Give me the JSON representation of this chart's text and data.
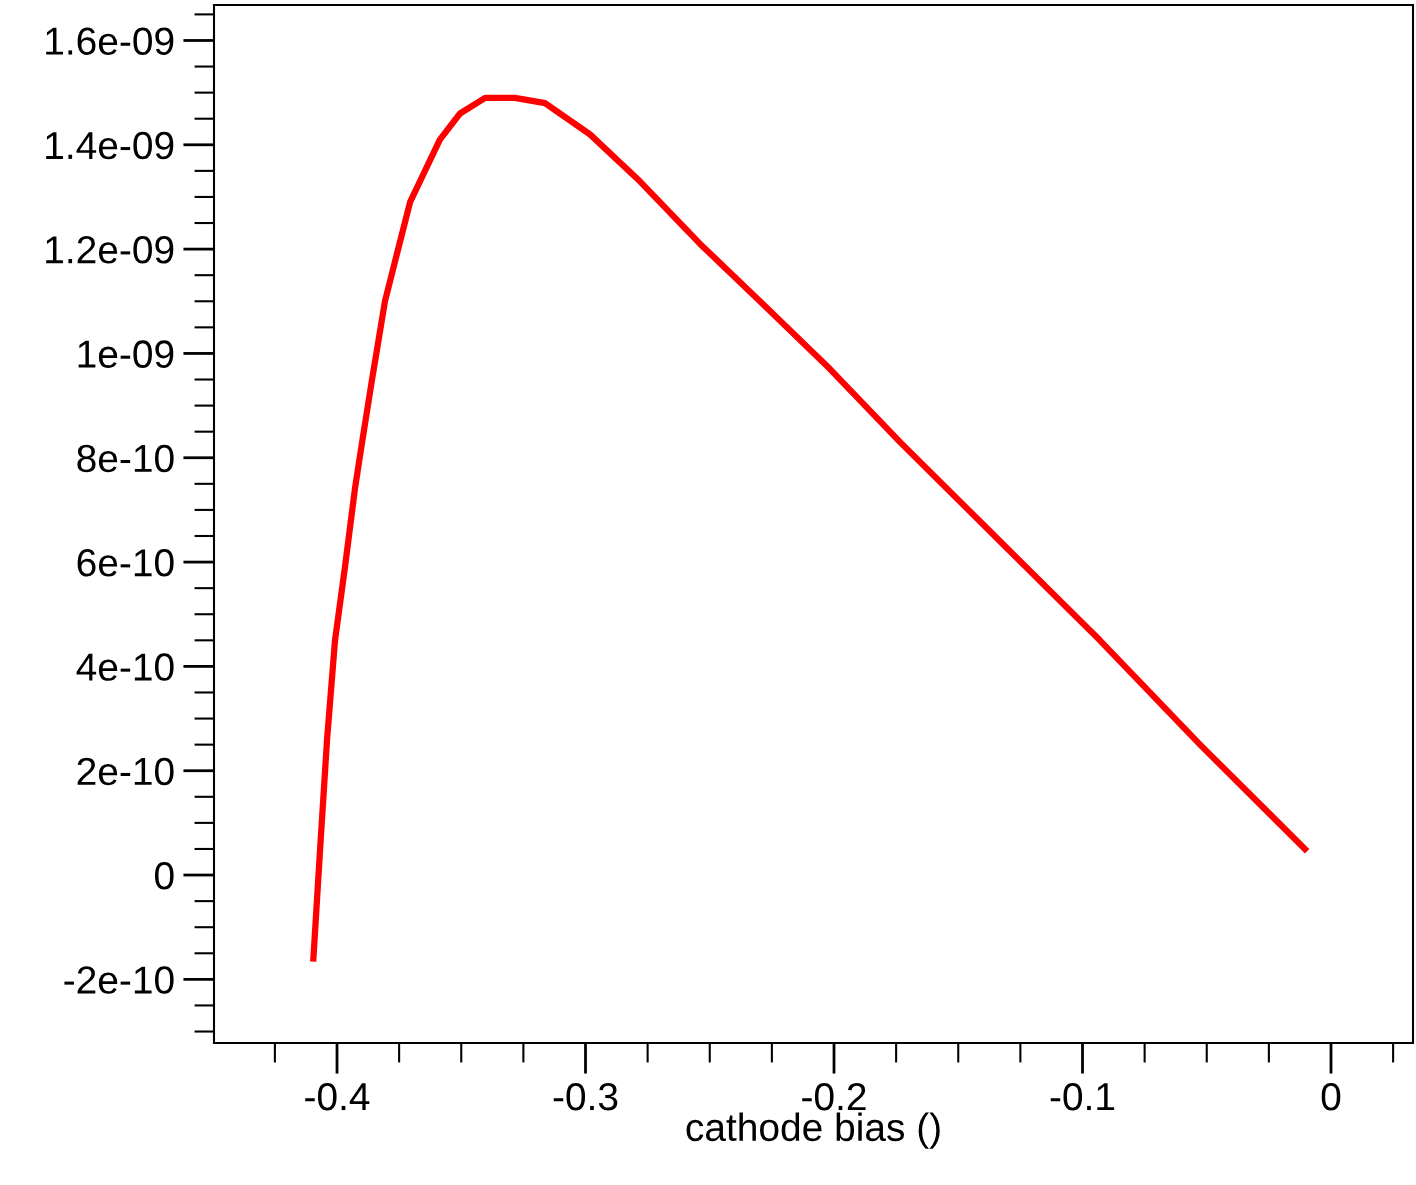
{
  "chart_data": {
    "type": "line",
    "xlabel": "cathode bias ()",
    "x": [
      -0.4095,
      -0.4068,
      -0.404,
      -0.4008,
      -0.3968,
      -0.3928,
      -0.3899,
      -0.3859,
      -0.3807,
      -0.3754,
      -0.3706,
      -0.3646,
      -0.3586,
      -0.3505,
      -0.3404,
      -0.3284,
      -0.3163,
      -0.2982,
      -0.2781,
      -0.2539,
      -0.2298,
      -0.2016,
      -0.1734,
      -0.1332,
      -0.093,
      -0.0527,
      -0.0105
    ],
    "series": [
      {
        "color": "#ff0000",
        "values": [
          -1.6e-10,
          5e-11,
          2.6e-10,
          4.5e-10,
          5.9e-10,
          7.4e-10,
          8.3e-10,
          9.5e-10,
          1.1e-09,
          1.2e-09,
          1.29e-09,
          1.35e-09,
          1.41e-09,
          1.46e-09,
          1.49e-09,
          1.49e-09,
          1.48e-09,
          1.42e-09,
          1.33e-09,
          1.21e-09,
          1.1e-09,
          9.7e-10,
          8.3e-10,
          6.4e-10,
          4.5e-10,
          2.5e-10,
          5e-11
        ]
      }
    ],
    "xlim": [
      -0.4495,
      0.033
    ],
    "ylim": [
      -3.22e-10,
      1.668e-09
    ],
    "xticks": [
      -0.4,
      -0.3,
      -0.2,
      -0.1,
      0
    ],
    "yticks": [
      {
        "value": -2e-10,
        "label": "-2e-10"
      },
      0,
      {
        "value": 2e-10,
        "label": "2e-10"
      },
      {
        "value": 4e-10,
        "label": "4e-10"
      },
      {
        "value": 6e-10,
        "label": "6e-10"
      },
      {
        "value": 8e-10,
        "label": "8e-10"
      },
      {
        "value": 1e-09,
        "label": "1e-09"
      },
      {
        "value": 1.2e-09,
        "label": "1.2e-09"
      },
      {
        "value": 1.4e-09,
        "label": "1.4e-09"
      },
      {
        "value": 1.6e-09,
        "label": "1.6e-09"
      }
    ],
    "grid": false,
    "legend": false,
    "marker": "none",
    "line_style": "solid"
  }
}
